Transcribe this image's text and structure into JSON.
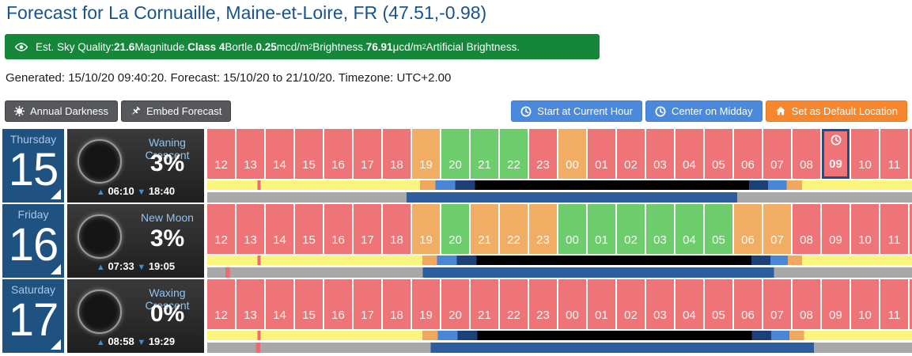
{
  "colors": {
    "title_text": "#17538f",
    "banner_bg": "#15863a",
    "day_box_bg": "#1f5181",
    "weekday_text": "#a9c7e9",
    "moon_panel_top": "#3a3a3a",
    "moon_panel_bottom": "#1f1f1f",
    "moon_phase_text": "#8fc3f0",
    "riseset_triangle": "#3f8fd6",
    "hour_red": "#ee7478",
    "hour_orange": "#f0ad63",
    "hour_green": "#6dcd6d",
    "current_hour_border": "#1d4e8f",
    "bar_yellow": "#fbf57e",
    "bar_orange": "#f0a85f",
    "bar_blue": "#4a86d8",
    "bar_darkblue": "#1d4078",
    "bar_black": "#000000",
    "moonbar_gray": "#a8a8a8",
    "moonbar_blue": "#2e5d9f",
    "tick_red": "#ef6a6a"
  },
  "header": {
    "title": "Forecast for La Cornuaille, Maine-et-Loire, FR (47.51,-0.98)"
  },
  "sky_banner": {
    "icon": "eye-icon",
    "segments": [
      {
        "t": "Est. Sky Quality:",
        "b": 0
      },
      {
        "t": "21.6",
        "b": 1
      },
      {
        "t": "Magnitude.",
        "b": 0
      },
      {
        "t": "Class 4",
        "b": 1
      },
      {
        "t": "Bortle.",
        "b": 0
      },
      {
        "t": "0.25",
        "b": 1
      },
      {
        "t": "mcd/m",
        "b": 0
      },
      {
        "t": "2",
        "b": 0,
        "sup": 1
      },
      {
        "t": "Brightness.",
        "b": 0
      },
      {
        "t": "76.91",
        "b": 1
      },
      {
        "t": "μcd/m",
        "b": 0
      },
      {
        "t": "2",
        "b": 0,
        "sup": 1
      },
      {
        "t": "Artificial Brightness.",
        "b": 0
      }
    ]
  },
  "meta_line": "Generated: 15/10/20 09:40:20. Forecast: 15/10/20 to 21/10/20. Timezone: UTC+2.00",
  "toolbar": {
    "left": [
      {
        "label": "Annual Darkness",
        "icon": "sun-icon",
        "style": "dark",
        "name": "annual-darkness-button"
      },
      {
        "label": "Embed Forecast",
        "icon": "pin-icon",
        "style": "dark",
        "name": "embed-forecast-button"
      }
    ],
    "right": [
      {
        "label": "Start at Current Hour",
        "icon": "clock-icon",
        "style": "blue",
        "name": "start-current-hour-button"
      },
      {
        "label": "Center on Midday",
        "icon": "clock-icon",
        "style": "blue",
        "name": "center-on-midday-button"
      },
      {
        "label": "Set as Default Location",
        "icon": "home-icon",
        "style": "orange",
        "name": "set-default-location-button"
      }
    ]
  },
  "days": [
    {
      "weekday": "Thursday",
      "date": "15",
      "moon": {
        "phase": "Waning Crescent",
        "illumination": "3%",
        "rise": "06:10",
        "set": "18:40"
      },
      "current_hour": "09",
      "hours": [
        {
          "h": "12",
          "c": "r"
        },
        {
          "h": "13",
          "c": "r"
        },
        {
          "h": "14",
          "c": "r"
        },
        {
          "h": "15",
          "c": "r"
        },
        {
          "h": "16",
          "c": "r"
        },
        {
          "h": "17",
          "c": "r"
        },
        {
          "h": "18",
          "c": "r"
        },
        {
          "h": "19",
          "c": "o"
        },
        {
          "h": "20",
          "c": "g"
        },
        {
          "h": "21",
          "c": "g"
        },
        {
          "h": "22",
          "c": "g"
        },
        {
          "h": "23",
          "c": "r"
        },
        {
          "h": "00",
          "c": "o"
        },
        {
          "h": "01",
          "c": "r"
        },
        {
          "h": "02",
          "c": "r"
        },
        {
          "h": "03",
          "c": "r"
        },
        {
          "h": "04",
          "c": "r"
        },
        {
          "h": "05",
          "c": "r"
        },
        {
          "h": "06",
          "c": "r"
        },
        {
          "h": "07",
          "c": "r"
        },
        {
          "h": "08",
          "c": "r"
        },
        {
          "h": "09",
          "c": "r"
        },
        {
          "h": "10",
          "c": "r"
        },
        {
          "h": "11",
          "c": "r"
        },
        {
          "h": "",
          "c": "r"
        }
      ],
      "sun_bar": [
        [
          "#fbf57e",
          0,
          7.1
        ],
        [
          "#ef6a6a",
          7.1,
          7.6
        ],
        [
          "#fbf57e",
          7.6,
          30.2
        ],
        [
          "#f0a85f",
          30.2,
          32.4
        ],
        [
          "#4a86d8",
          32.4,
          35.2
        ],
        [
          "#1d4078",
          35.2,
          38.0
        ],
        [
          "#000000",
          38.0,
          76.9
        ],
        [
          "#1d4078",
          76.9,
          79.6
        ],
        [
          "#4a86d8",
          79.6,
          82.2
        ],
        [
          "#f0a85f",
          82.2,
          84.4
        ],
        [
          "#fbf57e",
          84.4,
          100
        ]
      ],
      "moon_bar": [
        [
          "#a8a8a8",
          0,
          28.3
        ],
        [
          "#2e5d9f",
          28.3,
          75.2
        ],
        [
          "#a8a8a8",
          75.2,
          100
        ]
      ]
    },
    {
      "weekday": "Friday",
      "date": "16",
      "moon": {
        "phase": "New Moon",
        "illumination": "3%",
        "rise": "07:33",
        "set": "19:05"
      },
      "current_hour": "",
      "hours": [
        {
          "h": "12",
          "c": "r"
        },
        {
          "h": "13",
          "c": "r"
        },
        {
          "h": "14",
          "c": "r"
        },
        {
          "h": "15",
          "c": "r"
        },
        {
          "h": "16",
          "c": "r"
        },
        {
          "h": "17",
          "c": "r"
        },
        {
          "h": "18",
          "c": "r"
        },
        {
          "h": "19",
          "c": "o"
        },
        {
          "h": "20",
          "c": "g"
        },
        {
          "h": "21",
          "c": "o"
        },
        {
          "h": "22",
          "c": "o"
        },
        {
          "h": "23",
          "c": "o"
        },
        {
          "h": "00",
          "c": "g"
        },
        {
          "h": "01",
          "c": "g"
        },
        {
          "h": "02",
          "c": "g"
        },
        {
          "h": "03",
          "c": "g"
        },
        {
          "h": "04",
          "c": "g"
        },
        {
          "h": "05",
          "c": "g"
        },
        {
          "h": "06",
          "c": "o"
        },
        {
          "h": "07",
          "c": "o"
        },
        {
          "h": "08",
          "c": "r"
        },
        {
          "h": "09",
          "c": "r"
        },
        {
          "h": "10",
          "c": "r"
        },
        {
          "h": "11",
          "c": "r"
        },
        {
          "h": "",
          "c": "r"
        }
      ],
      "sun_bar": [
        [
          "#fbf57e",
          0,
          7.1
        ],
        [
          "#ef6a6a",
          7.1,
          7.6
        ],
        [
          "#fbf57e",
          7.6,
          30.5
        ],
        [
          "#f0a85f",
          30.5,
          32.6
        ],
        [
          "#4a86d8",
          32.6,
          35.4
        ],
        [
          "#1d4078",
          35.4,
          38.2
        ],
        [
          "#000000",
          38.2,
          77.2
        ],
        [
          "#1d4078",
          77.2,
          79.9
        ],
        [
          "#4a86d8",
          79.9,
          82.4
        ],
        [
          "#f0a85f",
          82.4,
          84.4
        ],
        [
          "#fbf57e",
          84.4,
          100
        ]
      ],
      "moon_bar": [
        [
          "#a8a8a8",
          0,
          2.6
        ],
        [
          "#ef6a6a",
          2.6,
          3.2
        ],
        [
          "#a8a8a8",
          3.2,
          30.6
        ],
        [
          "#2e5d9f",
          30.6,
          80.4
        ],
        [
          "#a8a8a8",
          80.4,
          100
        ]
      ]
    },
    {
      "weekday": "Saturday",
      "date": "17",
      "moon": {
        "phase": "Waxing Crescent",
        "illumination": "0%",
        "rise": "08:58",
        "set": "19:29"
      },
      "current_hour": "",
      "hours": [
        {
          "h": "12",
          "c": "r"
        },
        {
          "h": "13",
          "c": "r"
        },
        {
          "h": "14",
          "c": "r"
        },
        {
          "h": "15",
          "c": "r"
        },
        {
          "h": "16",
          "c": "r"
        },
        {
          "h": "17",
          "c": "r"
        },
        {
          "h": "18",
          "c": "r"
        },
        {
          "h": "19",
          "c": "r"
        },
        {
          "h": "20",
          "c": "r"
        },
        {
          "h": "21",
          "c": "r"
        },
        {
          "h": "22",
          "c": "r"
        },
        {
          "h": "23",
          "c": "r"
        },
        {
          "h": "00",
          "c": "r"
        },
        {
          "h": "01",
          "c": "r"
        },
        {
          "h": "02",
          "c": "r"
        },
        {
          "h": "03",
          "c": "r"
        },
        {
          "h": "04",
          "c": "r"
        },
        {
          "h": "05",
          "c": "r"
        },
        {
          "h": "06",
          "c": "r"
        },
        {
          "h": "07",
          "c": "r"
        },
        {
          "h": "08",
          "c": "r"
        },
        {
          "h": "09",
          "c": "r"
        },
        {
          "h": "10",
          "c": "r"
        },
        {
          "h": "11",
          "c": "r"
        },
        {
          "h": "",
          "c": "r"
        }
      ],
      "sun_bar": [
        [
          "#fbf57e",
          0,
          7.1
        ],
        [
          "#ef6a6a",
          7.1,
          7.6
        ],
        [
          "#fbf57e",
          7.6,
          30.5
        ],
        [
          "#f0a85f",
          30.5,
          32.7
        ],
        [
          "#4a86d8",
          32.7,
          35.5
        ],
        [
          "#1d4078",
          35.5,
          38.3
        ],
        [
          "#000000",
          38.3,
          77.3
        ],
        [
          "#1d4078",
          77.3,
          80.0
        ],
        [
          "#4a86d8",
          80.0,
          82.6
        ],
        [
          "#f0a85f",
          82.6,
          84.7
        ],
        [
          "#fbf57e",
          84.7,
          100
        ]
      ],
      "moon_bar": [
        [
          "#a8a8a8",
          0,
          6.9
        ],
        [
          "#ef6a6a",
          6.9,
          7.5
        ],
        [
          "#a8a8a8",
          7.5,
          31.7
        ],
        [
          "#2e5d9f",
          31.7,
          86.1
        ],
        [
          "#a8a8a8",
          86.1,
          100
        ]
      ]
    }
  ]
}
